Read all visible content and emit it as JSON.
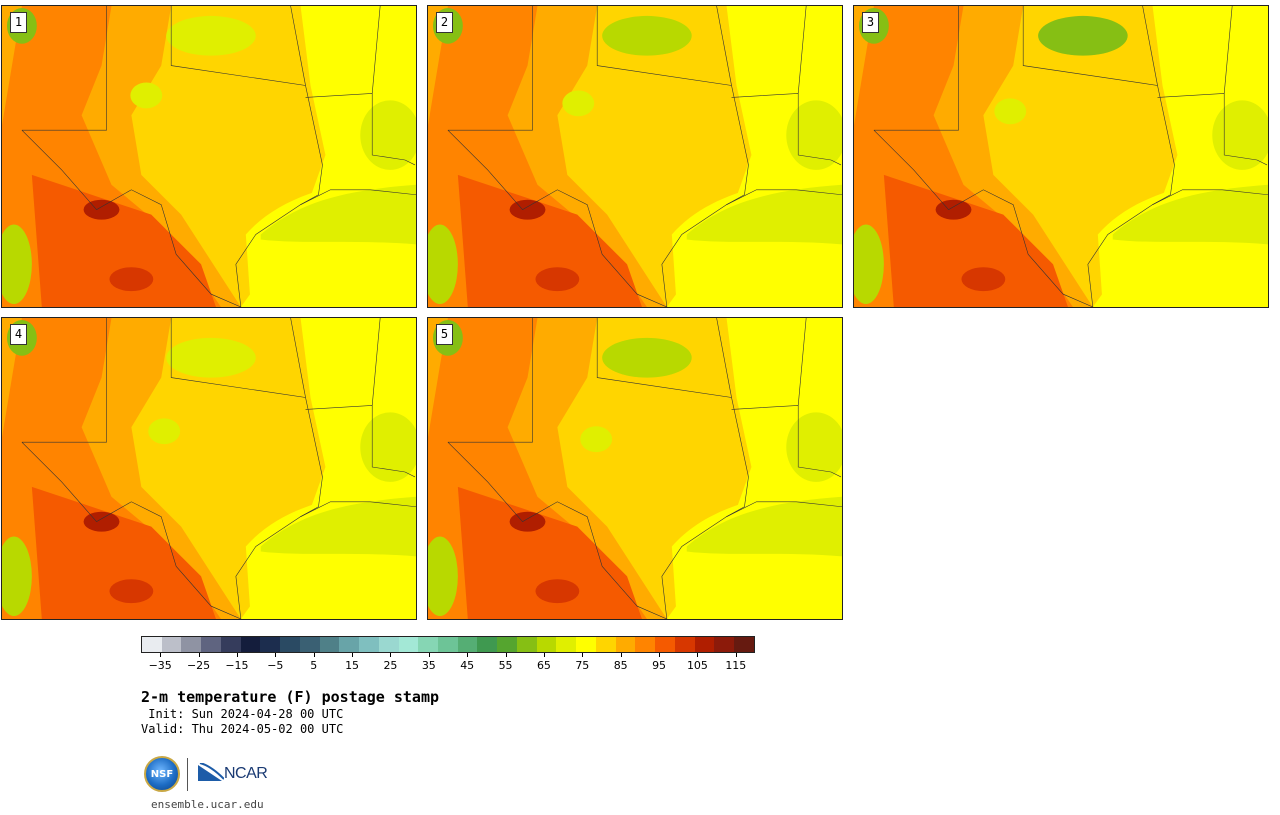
{
  "panels": [
    {
      "label": "1"
    },
    {
      "label": "2"
    },
    {
      "label": "3"
    },
    {
      "label": "4"
    },
    {
      "label": "5"
    }
  ],
  "colorbar": {
    "colors": [
      "#e9ecf0",
      "#bcbfc9",
      "#8f93a3",
      "#5f6480",
      "#353c5c",
      "#141d3c",
      "#1c2d4e",
      "#2a4a63",
      "#3a6073",
      "#4f8088",
      "#68a4a8",
      "#7fbfbf",
      "#9ad8d0",
      "#a3e8d6",
      "#86d6b4",
      "#6dc497",
      "#55ae74",
      "#3f9950",
      "#55a52f",
      "#86bf14",
      "#b8d900",
      "#e0ef00",
      "#ffff00",
      "#ffd500",
      "#ffab00",
      "#ff8400",
      "#f55a00",
      "#d73700",
      "#b01e00",
      "#8c1a0a",
      "#661a10"
    ],
    "tick_values": [
      -35,
      -25,
      -15,
      -5,
      5,
      15,
      25,
      35,
      45,
      55,
      65,
      75,
      85,
      95,
      105,
      115
    ],
    "tick_labels": [
      "−35",
      "−25",
      "−15",
      "−5",
      "5",
      "15",
      "25",
      "35",
      "45",
      "55",
      "65",
      "75",
      "85",
      "95",
      "105",
      "115"
    ],
    "min": -40,
    "max": 120
  },
  "title": "2-m temperature (F) postage stamp",
  "init": " Init: Sun 2024-04-28 00 UTC",
  "valid": "Valid: Thu 2024-05-02 00 UTC",
  "logos": {
    "nsf_text": "NSF",
    "ncar_text": "NCAR",
    "nsf_color": "#1d6cc4",
    "ncar_color": "#1a3a73"
  },
  "site": "ensemble.ucar.edu"
}
